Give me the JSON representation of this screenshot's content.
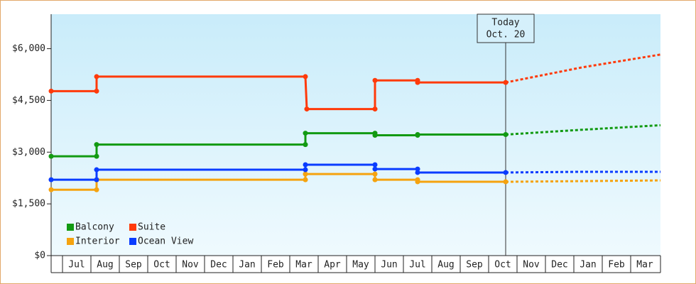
{
  "chart_data": {
    "type": "line",
    "xlim": [
      -0.4,
      21.05
    ],
    "xticks": [
      {
        "value": 0.5,
        "label": "Jul"
      },
      {
        "value": 1.5,
        "label": "Aug"
      },
      {
        "value": 2.5,
        "label": "Sep"
      },
      {
        "value": 3.5,
        "label": "Oct"
      },
      {
        "value": 4.5,
        "label": "Nov"
      },
      {
        "value": 5.5,
        "label": "Dec"
      },
      {
        "value": 6.5,
        "label": "Jan"
      },
      {
        "value": 7.5,
        "label": "Feb"
      },
      {
        "value": 8.5,
        "label": "Mar"
      },
      {
        "value": 9.5,
        "label": "Apr"
      },
      {
        "value": 10.5,
        "label": "May"
      },
      {
        "value": 11.5,
        "label": "Jun"
      },
      {
        "value": 12.5,
        "label": "Jul"
      },
      {
        "value": 13.5,
        "label": "Aug"
      },
      {
        "value": 14.5,
        "label": "Sep"
      },
      {
        "value": 15.5,
        "label": "Oct"
      },
      {
        "value": 16.5,
        "label": "Nov"
      },
      {
        "value": 17.5,
        "label": "Dec"
      },
      {
        "value": 18.5,
        "label": "Jan"
      },
      {
        "value": 19.5,
        "label": "Feb"
      },
      {
        "value": 20.5,
        "label": "Mar"
      }
    ],
    "ylim": [
      0,
      7000
    ],
    "yticks": [
      {
        "value": 0,
        "label": "$0"
      },
      {
        "value": 1500,
        "label": "$1,500"
      },
      {
        "value": 3000,
        "label": "$3,000"
      },
      {
        "value": 4500,
        "label": "$4,500"
      },
      {
        "value": 6000,
        "label": "$6,000"
      }
    ],
    "annotation": {
      "x": 15.6,
      "lines": [
        "Today",
        "Oct. 20"
      ]
    },
    "legend": "bottom-left",
    "series": [
      {
        "name": "Balcony",
        "color": "#129a12",
        "x": [
          -0.4,
          1.2,
          1.2,
          8.55,
          8.55,
          11.0,
          11.0,
          12.5,
          12.5,
          15.6
        ],
        "values": [
          2880,
          2880,
          3220,
          3220,
          3550,
          3550,
          3490,
          3490,
          3510,
          3510
        ],
        "forecast_x": [
          15.6,
          18.3,
          21.05
        ],
        "forecast_values": [
          3510,
          3650,
          3780
        ]
      },
      {
        "name": "Suite",
        "color": "#ff3a0a",
        "x": [
          -0.4,
          1.2,
          1.2,
          8.55,
          8.6,
          11.0,
          11.0,
          12.5,
          12.5,
          15.6
        ],
        "values": [
          4770,
          4770,
          5190,
          5190,
          4250,
          4250,
          5080,
          5080,
          5020,
          5020
        ],
        "forecast_x": [
          15.6,
          18.3,
          21.05
        ],
        "forecast_values": [
          5020,
          5460,
          5830
        ]
      },
      {
        "name": "Interior",
        "color": "#f5a30f",
        "x": [
          -0.4,
          1.2,
          1.2,
          8.55,
          8.55,
          11.0,
          11.0,
          12.5,
          12.5,
          15.6
        ],
        "values": [
          1910,
          1910,
          2200,
          2200,
          2365,
          2365,
          2200,
          2200,
          2140,
          2140
        ],
        "forecast_x": [
          15.6,
          18.3,
          21.05
        ],
        "forecast_values": [
          2140,
          2160,
          2180
        ]
      },
      {
        "name": "Ocean View",
        "color": "#0a3cff",
        "x": [
          -0.4,
          1.2,
          1.2,
          8.55,
          8.55,
          11.0,
          11.0,
          12.5,
          12.5,
          15.6
        ],
        "values": [
          2200,
          2200,
          2490,
          2490,
          2635,
          2635,
          2510,
          2510,
          2410,
          2410
        ],
        "forecast_x": [
          15.6,
          18.3,
          21.05
        ],
        "forecast_values": [
          2410,
          2430,
          2430
        ]
      }
    ]
  }
}
